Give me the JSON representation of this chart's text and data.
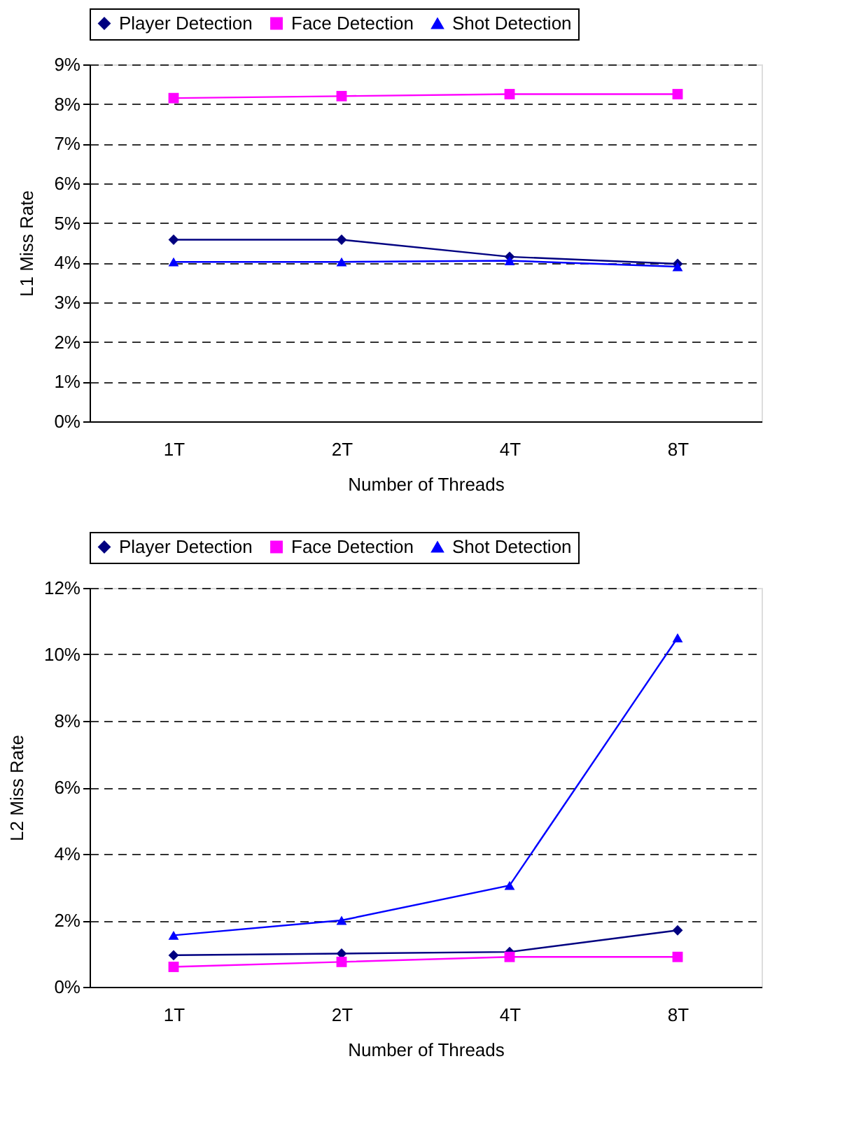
{
  "chart_data": [
    {
      "type": "line",
      "xlabel": "Number of Threads",
      "ylabel": "L1 Miss Rate",
      "categories": [
        "1T",
        "2T",
        "4T",
        "8T"
      ],
      "series": [
        {
          "name": "Player Detection",
          "color": "#000080",
          "marker": "diamond",
          "values": [
            4.58,
            4.58,
            4.15,
            3.97
          ]
        },
        {
          "name": "Face Detection",
          "color": "#ff00ff",
          "marker": "square",
          "values": [
            8.15,
            8.2,
            8.25,
            8.25
          ]
        },
        {
          "name": "Shot Detection",
          "color": "#0000ff",
          "marker": "triangle",
          "values": [
            4.02,
            4.02,
            4.05,
            3.9
          ]
        }
      ],
      "ylim": [
        0,
        9
      ],
      "yticks": [
        {
          "value": 0,
          "label": "0%"
        },
        {
          "value": 1,
          "label": "1%"
        },
        {
          "value": 2,
          "label": "2%"
        },
        {
          "value": 3,
          "label": "3%"
        },
        {
          "value": 4,
          "label": "4%"
        },
        {
          "value": 5,
          "label": "5%"
        },
        {
          "value": 6,
          "label": "6%"
        },
        {
          "value": 7,
          "label": "7%"
        },
        {
          "value": 8,
          "label": "8%"
        },
        {
          "value": 9,
          "label": "9%"
        }
      ],
      "grid": "y",
      "legend": "top",
      "line_style": "solid"
    },
    {
      "type": "line",
      "xlabel": "Number of Threads",
      "ylabel": "L2 Miss Rate",
      "categories": [
        "1T",
        "2T",
        "4T",
        "8T"
      ],
      "series": [
        {
          "name": "Player Detection",
          "color": "#000080",
          "marker": "diamond",
          "values": [
            0.95,
            1.0,
            1.05,
            1.7
          ]
        },
        {
          "name": "Face Detection",
          "color": "#ff00ff",
          "marker": "square",
          "values": [
            0.6,
            0.75,
            0.9,
            0.9
          ]
        },
        {
          "name": "Shot Detection",
          "color": "#0000ff",
          "marker": "triangle",
          "values": [
            1.55,
            2.0,
            3.05,
            10.5
          ]
        }
      ],
      "ylim": [
        0,
        12
      ],
      "yticks": [
        {
          "value": 0,
          "label": "0%"
        },
        {
          "value": 2,
          "label": "2%"
        },
        {
          "value": 4,
          "label": "4%"
        },
        {
          "value": 6,
          "label": "6%"
        },
        {
          "value": 8,
          "label": "8%"
        },
        {
          "value": 10,
          "label": "10%"
        },
        {
          "value": 12,
          "label": "12%"
        }
      ],
      "grid": "y",
      "legend": "top",
      "line_style": "solid"
    }
  ]
}
